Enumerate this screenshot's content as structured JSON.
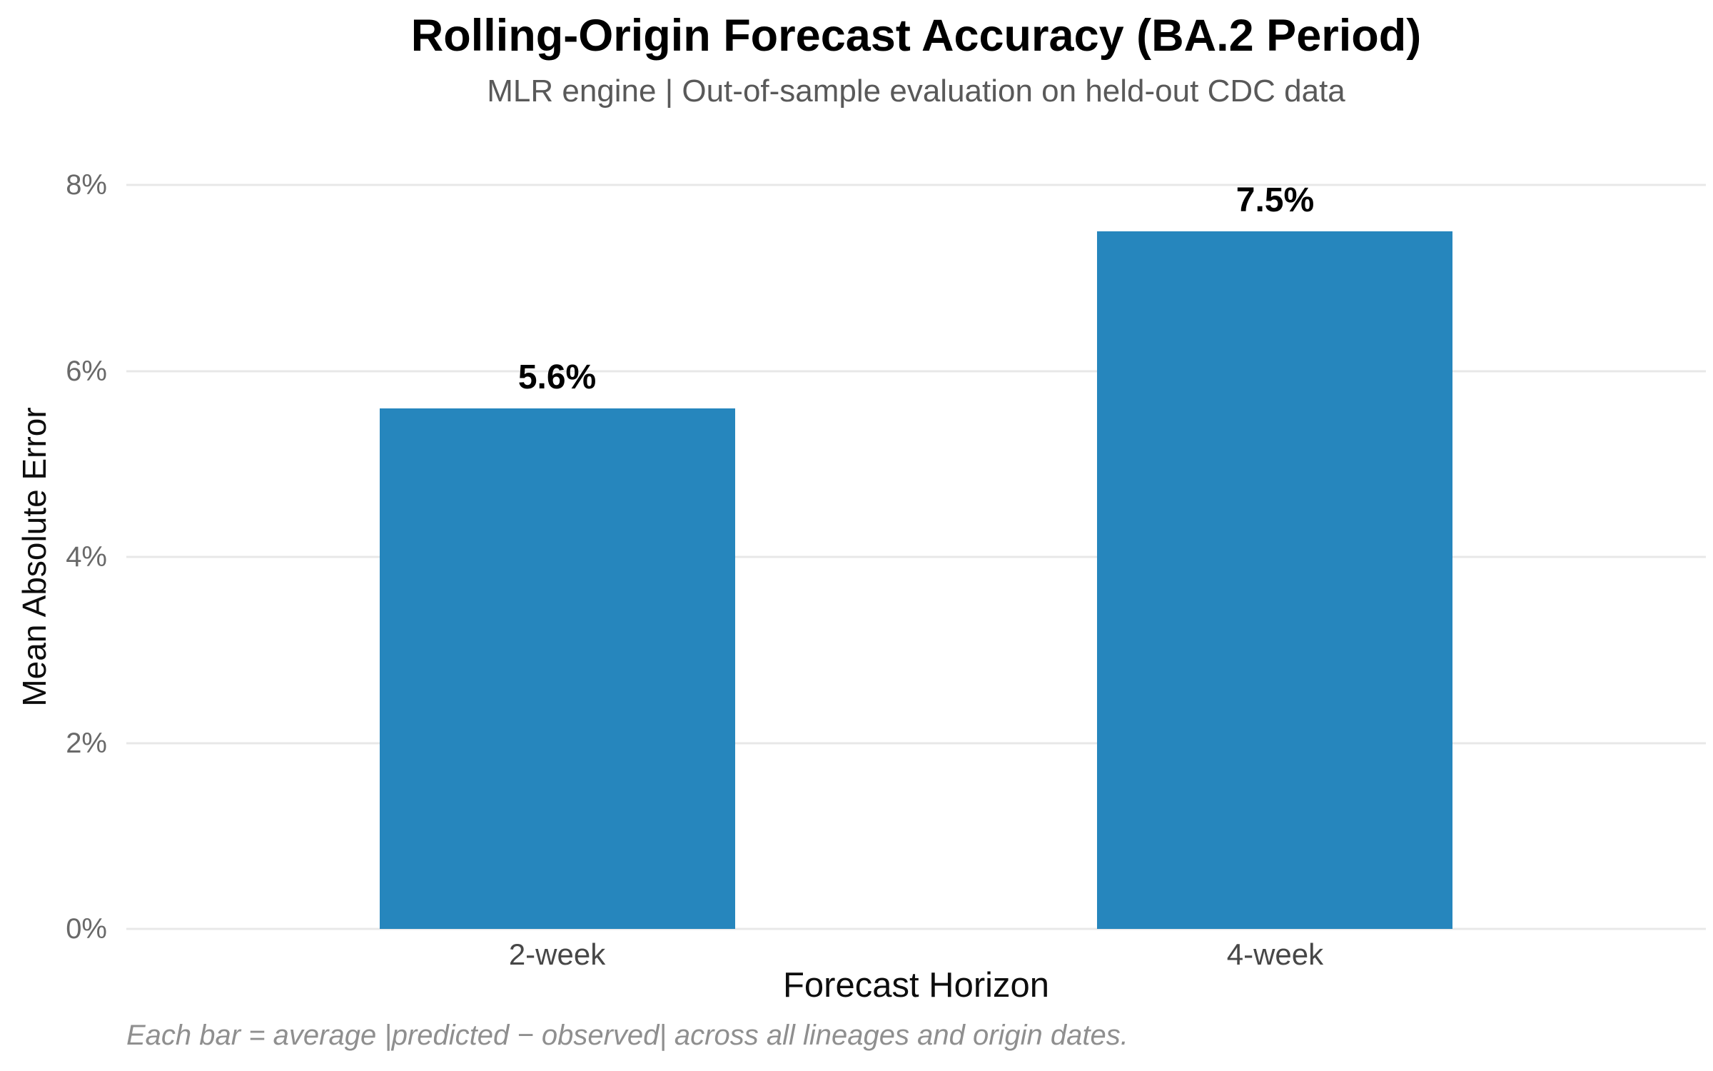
{
  "chart_data": {
    "type": "bar",
    "title": "Rolling-Origin Forecast Accuracy (BA.2 Period)",
    "subtitle": "MLR engine | Out-of-sample evaluation on held-out CDC data",
    "xlabel": "Forecast Horizon",
    "ylabel": "Mean Absolute Error",
    "caption": "Each bar = average |predicted − observed| across all lineages and origin dates.",
    "categories": [
      "2-week",
      "4-week"
    ],
    "values": [
      5.6,
      7.5
    ],
    "value_labels": [
      "5.6%",
      "7.5%"
    ],
    "ylim": [
      0,
      8
    ],
    "yticks": [
      {
        "value": 0,
        "label": "0%"
      },
      {
        "value": 2,
        "label": "2%"
      },
      {
        "value": 4,
        "label": "4%"
      },
      {
        "value": 6,
        "label": "6%"
      },
      {
        "value": 8,
        "label": "8%"
      }
    ],
    "grid": "horizontal-major-only",
    "legend": "none",
    "colors": {
      "bar": "#2686bd",
      "gridline": "#e8e8e8",
      "background": "#ffffff",
      "title": "#000000",
      "subtitle": "#595959",
      "ytick": "#696969",
      "xtick": "#474747",
      "caption": "#8f8f8f"
    }
  }
}
